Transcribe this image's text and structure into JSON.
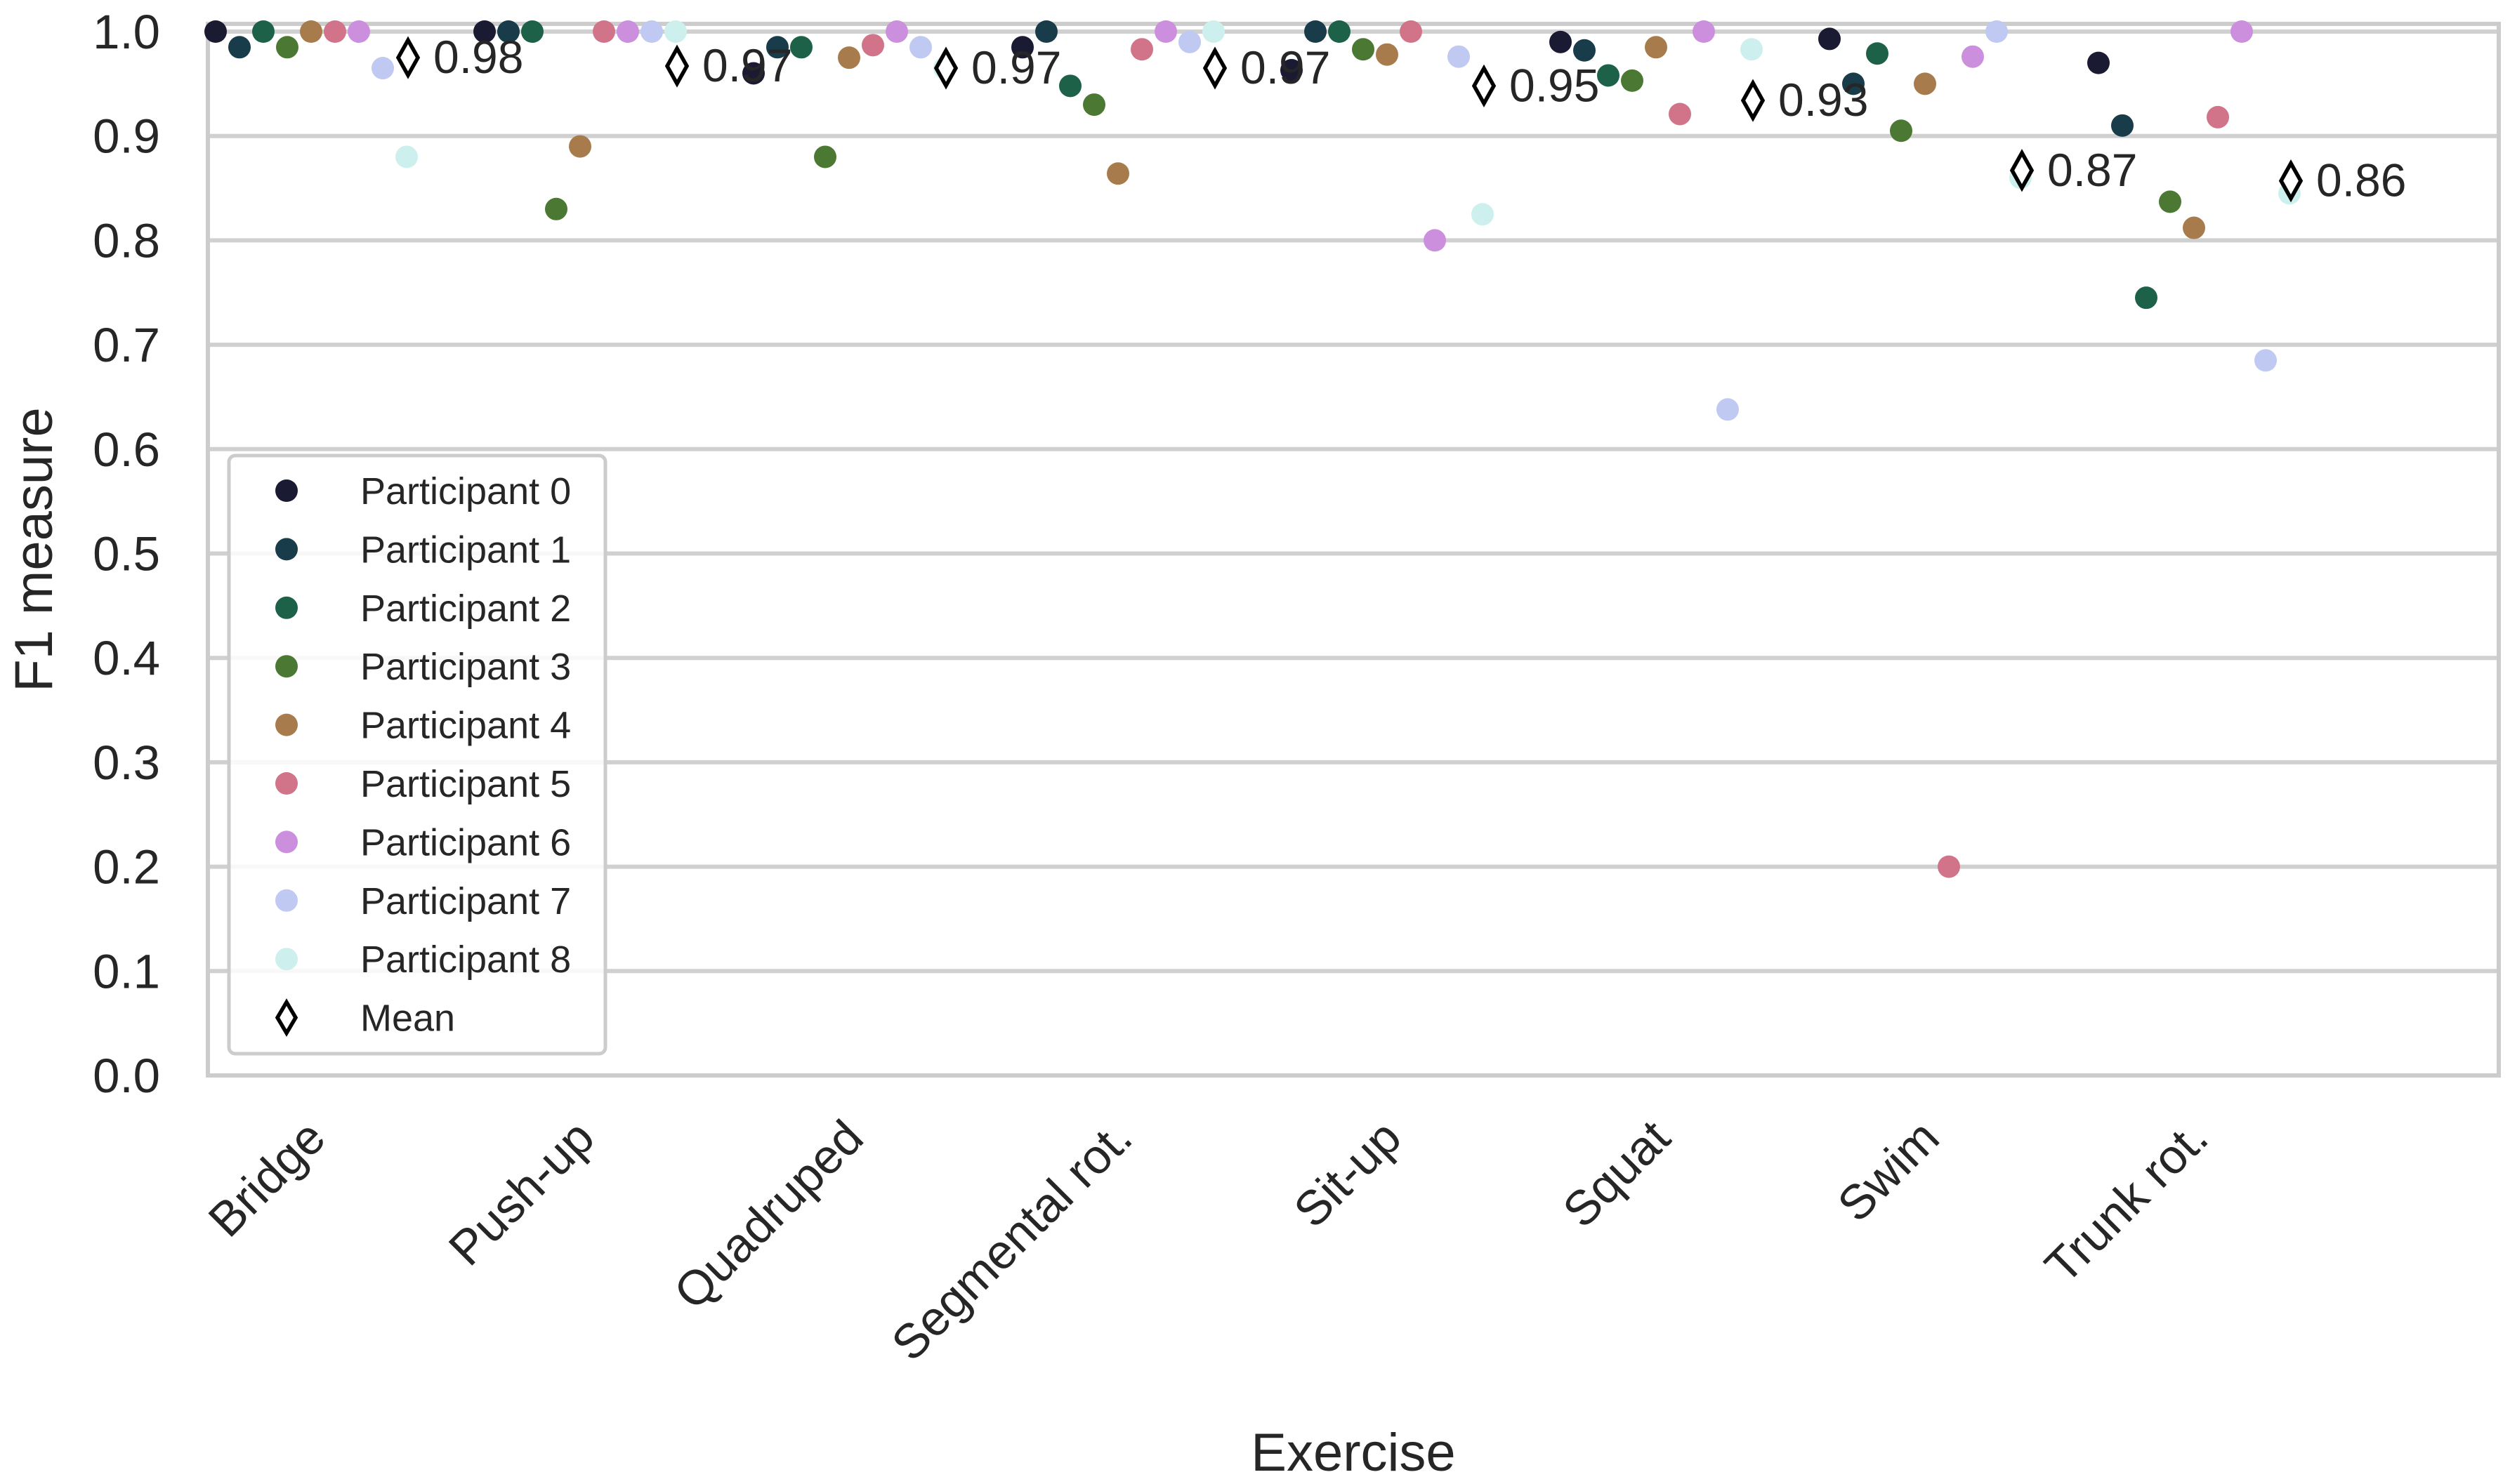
{
  "chart_data": {
    "type": "scatter",
    "title": "",
    "xlabel": "Exercise",
    "ylabel": "F1 measure",
    "ylim": [
      0.0,
      1.0
    ],
    "yticks": [
      "0.0",
      "0.1",
      "0.2",
      "0.3",
      "0.4",
      "0.5",
      "0.6",
      "0.7",
      "0.8",
      "0.9",
      "1.0"
    ],
    "grid": true,
    "legend_position": "center-left",
    "categories": [
      "Bridge",
      "Push-up",
      "Quadruped",
      "Segmental rot.",
      "Sit-up",
      "Squat",
      "Swim",
      "Trunk rot."
    ],
    "series": [
      {
        "name": "Participant 0",
        "color": "#1a1a33",
        "values": [
          1.0,
          1.0,
          0.96,
          0.985,
          0.963,
          0.99,
          0.993,
          0.97
        ]
      },
      {
        "name": "Participant 1",
        "color": "#193c4a",
        "values": [
          0.985,
          1.0,
          0.985,
          1.0,
          1.0,
          0.982,
          0.95,
          0.91
        ]
      },
      {
        "name": "Participant 2",
        "color": "#1d6149",
        "values": [
          1.0,
          1.0,
          0.985,
          0.948,
          1.0,
          0.958,
          0.979,
          0.745
        ]
      },
      {
        "name": "Participant 3",
        "color": "#4b7833",
        "values": [
          0.985,
          0.83,
          0.88,
          0.93,
          0.983,
          0.953,
          0.905,
          0.837
        ]
      },
      {
        "name": "Participant 4",
        "color": "#a77b4b",
        "values": [
          1.0,
          0.89,
          0.975,
          0.864,
          0.978,
          0.985,
          0.95,
          0.812
        ]
      },
      {
        "name": "Participant 5",
        "color": "#d1748a",
        "values": [
          1.0,
          1.0,
          0.987,
          0.983,
          1.0,
          0.921,
          0.2,
          0.918
        ]
      },
      {
        "name": "Participant 6",
        "color": "#cc8fdd",
        "values": [
          1.0,
          1.0,
          1.0,
          1.0,
          0.8,
          1.0,
          0.976,
          1.0
        ]
      },
      {
        "name": "Participant 7",
        "color": "#bfc9f2",
        "values": [
          0.965,
          1.0,
          0.985,
          0.99,
          0.976,
          0.638,
          1.0,
          0.685
        ]
      },
      {
        "name": "Participant 8",
        "color": "#cdf0ee",
        "values": [
          0.88,
          1.0,
          0.965,
          1.0,
          0.825,
          0.983,
          0.86,
          0.845
        ]
      }
    ],
    "mean": {
      "name": "Mean",
      "values": [
        0.975,
        0.967,
        0.965,
        0.965,
        0.948,
        0.934,
        0.867,
        0.857
      ],
      "labels": [
        "0.98",
        "0.97",
        "0.97",
        "0.97",
        "0.95",
        "0.93",
        "0.87",
        "0.86"
      ]
    }
  }
}
